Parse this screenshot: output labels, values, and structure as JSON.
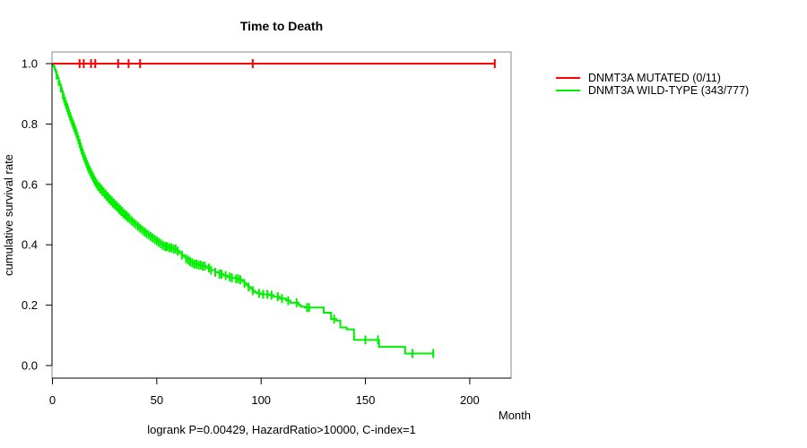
{
  "chart_data": {
    "type": "line",
    "subtype": "kaplan-meier-step",
    "title": "Time to Death",
    "xlabel": "Month",
    "ylabel": "cumulative survival rate",
    "footnote": "logrank P=0.00429, HazardRatio>10000, C-index=1",
    "xlim": [
      0,
      220
    ],
    "ylim": [
      0,
      1
    ],
    "xticks": [
      0,
      50,
      100,
      150,
      200
    ],
    "yticks": [
      0.0,
      0.2,
      0.4,
      0.6,
      0.8,
      1.0
    ],
    "grid": false,
    "legend_position": "outside-right",
    "axis_box_color": "#888888",
    "axis_line_color": "#000000",
    "series": [
      {
        "name": "DNMT3A MUTATED (0/11)",
        "events_total": "0/11",
        "color": "#ff0000",
        "points": [
          [
            0,
            1.0
          ],
          [
            212,
            1.0
          ]
        ],
        "censor_marks": [
          13,
          15,
          18.5,
          20.5,
          31.5,
          36.5,
          42,
          96,
          212
        ]
      },
      {
        "name": "DNMT3A WILD-TYPE (343/777)",
        "events_total": "343/777",
        "color": "#00ee00",
        "points": [
          [
            0,
            1.0
          ],
          [
            0.5,
            0.991
          ],
          [
            1,
            0.982
          ],
          [
            1.5,
            0.972
          ],
          [
            2,
            0.962
          ],
          [
            2.5,
            0.952
          ],
          [
            3,
            0.941
          ],
          [
            3.5,
            0.93
          ],
          [
            4,
            0.919
          ],
          [
            4.5,
            0.908
          ],
          [
            5,
            0.897
          ],
          [
            5.5,
            0.886
          ],
          [
            6,
            0.875
          ],
          [
            6.5,
            0.865
          ],
          [
            7,
            0.855
          ],
          [
            7.5,
            0.845
          ],
          [
            8,
            0.835
          ],
          [
            8.5,
            0.825
          ],
          [
            9,
            0.815
          ],
          [
            9.5,
            0.806
          ],
          [
            10,
            0.797
          ],
          [
            10.5,
            0.788
          ],
          [
            11,
            0.779
          ],
          [
            11.5,
            0.769
          ],
          [
            12,
            0.758
          ],
          [
            12.5,
            0.747
          ],
          [
            13,
            0.736
          ],
          [
            13.5,
            0.725
          ],
          [
            14,
            0.714
          ],
          [
            14.5,
            0.704
          ],
          [
            15,
            0.694
          ],
          [
            15.5,
            0.685
          ],
          [
            16,
            0.676
          ],
          [
            16.5,
            0.667
          ],
          [
            17,
            0.659
          ],
          [
            17.5,
            0.651
          ],
          [
            18,
            0.644
          ],
          [
            18.5,
            0.637
          ],
          [
            19,
            0.63
          ],
          [
            19.5,
            0.623
          ],
          [
            20,
            0.616
          ],
          [
            20.5,
            0.61
          ],
          [
            21,
            0.604
          ],
          [
            21.5,
            0.598
          ],
          [
            22,
            0.592
          ],
          [
            23,
            0.584
          ],
          [
            24,
            0.576
          ],
          [
            25,
            0.568
          ],
          [
            26,
            0.56
          ],
          [
            27,
            0.552
          ],
          [
            28,
            0.545
          ],
          [
            29,
            0.538
          ],
          [
            30,
            0.531
          ],
          [
            31,
            0.524
          ],
          [
            32,
            0.517
          ],
          [
            33,
            0.51
          ],
          [
            34,
            0.503
          ],
          [
            35,
            0.497
          ],
          [
            36,
            0.491
          ],
          [
            37,
            0.485
          ],
          [
            38,
            0.479
          ],
          [
            39,
            0.473
          ],
          [
            40,
            0.467
          ],
          [
            41,
            0.461
          ],
          [
            42,
            0.455
          ],
          [
            43,
            0.449
          ],
          [
            44,
            0.443
          ],
          [
            45,
            0.438
          ],
          [
            46,
            0.433
          ],
          [
            47,
            0.428
          ],
          [
            48,
            0.423
          ],
          [
            49,
            0.418
          ],
          [
            50,
            0.413
          ],
          [
            51,
            0.408
          ],
          [
            52,
            0.403
          ],
          [
            53,
            0.398
          ],
          [
            54,
            0.394
          ],
          [
            56,
            0.39
          ],
          [
            58,
            0.386
          ],
          [
            60,
            0.379
          ],
          [
            61,
            0.372
          ],
          [
            62,
            0.366
          ],
          [
            63,
            0.36
          ],
          [
            64,
            0.354
          ],
          [
            65,
            0.349
          ],
          [
            66,
            0.344
          ],
          [
            67,
            0.34
          ],
          [
            68,
            0.336
          ],
          [
            70,
            0.333
          ],
          [
            72,
            0.329
          ],
          [
            74,
            0.323
          ],
          [
            76,
            0.316
          ],
          [
            78,
            0.309
          ],
          [
            80,
            0.303
          ],
          [
            82,
            0.298
          ],
          [
            84,
            0.293
          ],
          [
            86,
            0.29
          ],
          [
            88,
            0.287
          ],
          [
            90,
            0.284
          ],
          [
            91,
            0.278
          ],
          [
            92,
            0.272
          ],
          [
            93,
            0.266
          ],
          [
            94,
            0.26
          ],
          [
            95,
            0.254
          ],
          [
            96,
            0.248
          ],
          [
            97,
            0.243
          ],
          [
            98,
            0.239
          ],
          [
            100,
            0.236
          ],
          [
            104,
            0.233
          ],
          [
            106,
            0.228
          ],
          [
            109,
            0.222
          ],
          [
            112,
            0.215
          ],
          [
            114,
            0.208
          ],
          [
            118,
            0.201
          ],
          [
            119,
            0.195
          ],
          [
            121,
            0.192
          ],
          [
            130,
            0.175
          ],
          [
            133.5,
            0.154
          ],
          [
            136,
            0.149
          ],
          [
            138,
            0.126
          ],
          [
            141,
            0.12
          ],
          [
            144.5,
            0.085
          ],
          [
            156.5,
            0.062
          ],
          [
            169,
            0.04
          ],
          [
            182.5,
            0.04
          ]
        ],
        "censor_marks": [
          2,
          3,
          4,
          5,
          5.5,
          6,
          6.5,
          7,
          7.5,
          8,
          8.5,
          9,
          9.5,
          10,
          10.5,
          11,
          11.5,
          12,
          12.5,
          13,
          13.5,
          14,
          14.5,
          15,
          15.5,
          16,
          16.5,
          17,
          17.5,
          18,
          18.5,
          19,
          19.5,
          20,
          20.5,
          21,
          21.5,
          22,
          22.5,
          23,
          23.5,
          24,
          24.5,
          25,
          25.5,
          26,
          26.5,
          27,
          27.5,
          28,
          28.5,
          29,
          29.5,
          30,
          30.5,
          31,
          31.5,
          32,
          32.5,
          33,
          33.5,
          34,
          34.5,
          35,
          35.5,
          36,
          36.5,
          37,
          38,
          39,
          40,
          41,
          42,
          43,
          44,
          45,
          46,
          47,
          48,
          49,
          50,
          51,
          52,
          53,
          54,
          54.5,
          55,
          56,
          57,
          58,
          59,
          60,
          62,
          64,
          65,
          66,
          67,
          68,
          69,
          70,
          71,
          72,
          73,
          75,
          76,
          78,
          80,
          81,
          83,
          85,
          86,
          88,
          89,
          90,
          92,
          94,
          96,
          99,
          101,
          103,
          105,
          108,
          110,
          113,
          117,
          122,
          123,
          135,
          150,
          156,
          172.5,
          182.5
        ]
      }
    ]
  }
}
